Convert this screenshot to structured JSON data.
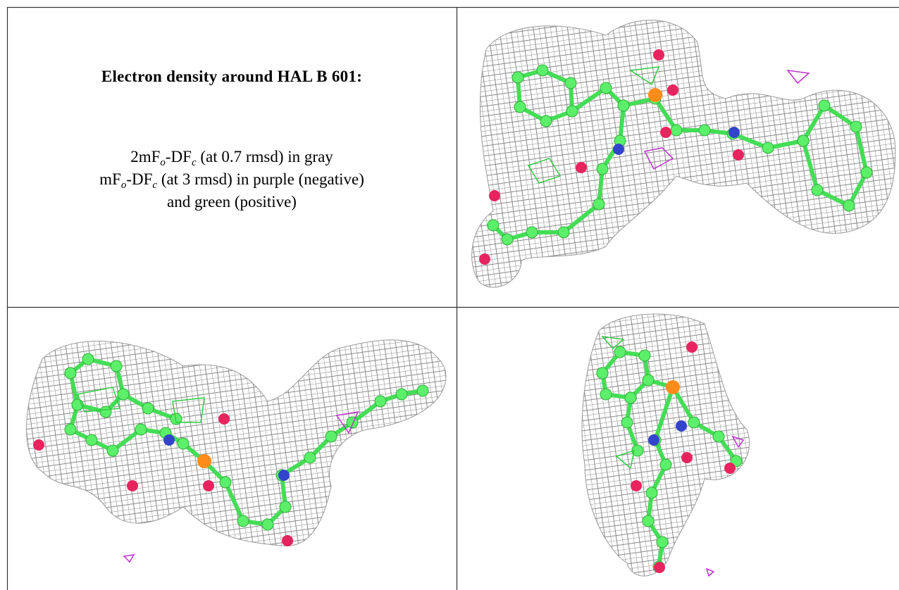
{
  "caption": {
    "title": "Electron density around HAL B 601:",
    "lines": [
      [
        "2mF",
        "o",
        "-DF",
        "c",
        " (at 0.7 rmsd) in gray"
      ],
      [
        "mF",
        "o",
        "-DF",
        "c",
        " (at 3 rmsd) in purple (negative)"
      ],
      [
        "and green (positive)"
      ]
    ]
  }
}
